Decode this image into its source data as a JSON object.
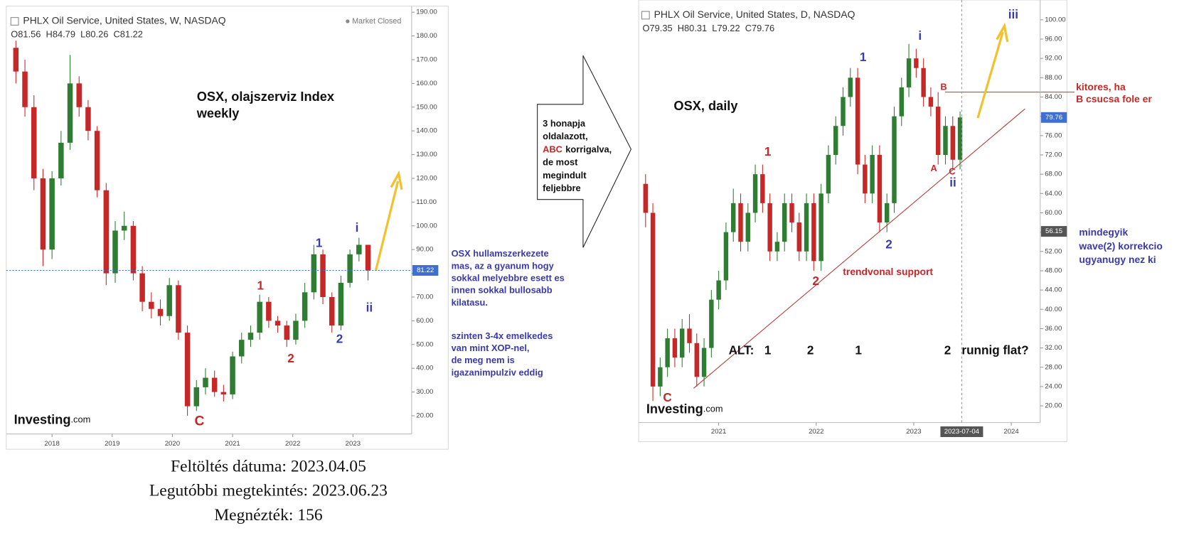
{
  "chart_data": [
    {
      "type": "candlestick",
      "title": "PHLX Oil Service, United States, W, NASDAQ",
      "ohlc_text": "O81.56  H84.79  L80.26  C81.22",
      "status": "Market Closed",
      "logo": [
        "Investing",
        ".com"
      ],
      "up_color": "#2e7d32",
      "down_color": "#c62828",
      "x": [
        2017.4,
        2017.55,
        2017.7,
        2017.85,
        2018.0,
        2018.15,
        2018.3,
        2018.45,
        2018.6,
        2018.75,
        2018.9,
        2019.05,
        2019.2,
        2019.35,
        2019.5,
        2019.65,
        2019.8,
        2019.95,
        2020.1,
        2020.25,
        2020.4,
        2020.55,
        2020.7,
        2020.85,
        2021.0,
        2021.15,
        2021.3,
        2021.45,
        2021.6,
        2021.75,
        2021.9,
        2022.05,
        2022.2,
        2022.35,
        2022.5,
        2022.65,
        2022.8,
        2022.95,
        2023.1,
        2023.25
      ],
      "open": [
        175,
        165,
        150,
        120,
        90,
        120,
        135,
        160,
        150,
        140,
        115,
        80,
        98,
        100,
        80,
        68,
        65,
        62,
        75,
        55,
        24,
        32,
        36,
        30,
        29,
        45,
        52,
        55,
        68,
        60,
        58,
        52,
        60,
        72,
        88,
        70,
        58,
        76,
        88,
        92
      ],
      "high": [
        178,
        170,
        155,
        124,
        123,
        140,
        172,
        163,
        153,
        142,
        118,
        102,
        106,
        102,
        83,
        72,
        69,
        78,
        77,
        58,
        35,
        40,
        39,
        33,
        47,
        55,
        58,
        71,
        70,
        62,
        60,
        63,
        76,
        92,
        90,
        72,
        79,
        90,
        95,
        92
      ],
      "low": [
        160,
        146,
        115,
        83,
        86,
        117,
        132,
        146,
        136,
        112,
        75,
        76,
        94,
        77,
        64,
        61,
        58,
        60,
        52,
        20,
        22,
        29,
        28,
        26,
        27,
        42,
        49,
        52,
        57,
        55,
        49,
        50,
        57,
        69,
        67,
        55,
        56,
        74,
        85,
        77
      ],
      "close": [
        165,
        150,
        120,
        90,
        120,
        135,
        160,
        150,
        140,
        115,
        80,
        98,
        100,
        80,
        68,
        65,
        62,
        75,
        55,
        24,
        32,
        36,
        30,
        29,
        45,
        52,
        55,
        68,
        60,
        58,
        52,
        60,
        72,
        88,
        70,
        58,
        76,
        88,
        92,
        81.22
      ],
      "xlim": [
        2017.24,
        2023.97
      ],
      "ylim": [
        20,
        190
      ],
      "xticks": [
        2018,
        2019,
        2020,
        2021,
        2022,
        2023
      ],
      "yticks": [
        {
          "value": 20,
          "label": "20.00"
        },
        {
          "value": 30,
          "label": "30.00"
        },
        {
          "value": 40,
          "label": "40.00"
        },
        {
          "value": 50,
          "label": "50.00"
        },
        {
          "value": 60,
          "label": "60.00"
        },
        {
          "value": 70,
          "label": "70.00"
        },
        {
          "value": 80,
          "label": "80.00"
        },
        {
          "value": 90,
          "label": "90.00"
        },
        {
          "value": 100,
          "label": "100.00"
        },
        {
          "value": 110,
          "label": "110.00"
        },
        {
          "value": 120,
          "label": "120.00"
        },
        {
          "value": 130,
          "label": "130.00"
        },
        {
          "value": 140,
          "label": "140.00"
        },
        {
          "value": 150,
          "label": "150.00"
        },
        {
          "value": 160,
          "label": "160.00"
        },
        {
          "value": 170,
          "label": "170.00"
        },
        {
          "value": 180,
          "label": "180.00"
        },
        {
          "value": 190,
          "label": "190.00"
        }
      ],
      "price_marks": [
        {
          "value": 81.22,
          "color": "#3f6fd1",
          "line": true
        }
      ],
      "annotations": [
        {
          "text": "OSX, olajszerviz Index",
          "color": "#111111"
        },
        {
          "text": "weekly",
          "color": "#111111"
        },
        {
          "text": "1",
          "color": "#c62828"
        },
        {
          "text": "2",
          "color": "#c62828"
        },
        {
          "text": "1",
          "color": "#3a3aa8"
        },
        {
          "text": "2",
          "color": "#3a3aa8"
        },
        {
          "text": "i",
          "color": "#3a3aa8"
        },
        {
          "text": "ii",
          "color": "#3a3aa8"
        },
        {
          "text": "C",
          "color": "#c62828"
        }
      ]
    },
    {
      "type": "candlestick",
      "title": "PHLX Oil Service, United States, D, NASDAQ",
      "ohlc_text": "O79.35  H80.31  L79.22  C79.76",
      "logo": [
        "Investing",
        ".com"
      ],
      "up_color": "#2e7d32",
      "down_color": "#c62828",
      "x": [
        2020.25,
        2020.325,
        2020.4,
        2020.475,
        2020.55,
        2020.625,
        2020.7,
        2020.775,
        2020.85,
        2020.925,
        2021.0,
        2021.075,
        2021.15,
        2021.225,
        2021.3,
        2021.375,
        2021.45,
        2021.525,
        2021.6,
        2021.675,
        2021.75,
        2021.825,
        2021.9,
        2021.975,
        2022.05,
        2022.125,
        2022.2,
        2022.275,
        2022.35,
        2022.425,
        2022.5,
        2022.575,
        2022.65,
        2022.725,
        2022.8,
        2022.875,
        2022.95,
        2023.025,
        2023.1,
        2023.175,
        2023.25,
        2023.325,
        2023.4,
        2023.475
      ],
      "open": [
        66,
        60,
        24,
        28,
        34,
        30,
        36,
        33,
        26,
        32,
        42,
        46,
        56,
        62,
        54,
        60,
        68,
        62,
        52,
        54,
        62,
        58,
        52,
        62,
        50,
        64,
        72,
        78,
        84,
        88,
        70,
        64,
        72,
        58,
        62,
        80,
        86,
        92,
        90,
        84,
        82,
        72,
        78,
        71
      ],
      "high": [
        68,
        62,
        30,
        36,
        36,
        38,
        39,
        35,
        34,
        44,
        48,
        58,
        65,
        64,
        62,
        70,
        70,
        64,
        56,
        64,
        64,
        60,
        64,
        64,
        66,
        74,
        80,
        86,
        90,
        90,
        72,
        74,
        74,
        64,
        82,
        88,
        95,
        94,
        92,
        86,
        85,
        80,
        80,
        81
      ],
      "low": [
        57,
        21,
        22,
        26,
        28,
        28,
        31,
        24,
        24,
        30,
        40,
        44,
        54,
        52,
        52,
        58,
        60,
        50,
        50,
        52,
        56,
        50,
        50,
        48,
        48,
        62,
        70,
        76,
        82,
        68,
        62,
        62,
        56,
        56,
        60,
        78,
        84,
        88,
        82,
        80,
        70,
        70,
        69,
        69
      ],
      "close": [
        60,
        24,
        28,
        34,
        30,
        36,
        33,
        26,
        32,
        42,
        46,
        56,
        62,
        54,
        60,
        68,
        62,
        52,
        54,
        62,
        58,
        52,
        62,
        50,
        64,
        72,
        78,
        84,
        88,
        70,
        64,
        72,
        58,
        62,
        80,
        86,
        92,
        90,
        84,
        82,
        72,
        78,
        71,
        79.76
      ],
      "xlim": [
        2020.18,
        2024.3
      ],
      "ylim": [
        20,
        100
      ],
      "xticks": [
        2021,
        2022,
        2023,
        2024
      ],
      "yticks": [
        {
          "value": 20,
          "label": "20.00"
        },
        {
          "value": 24,
          "label": "24.00"
        },
        {
          "value": 28,
          "label": "28.00"
        },
        {
          "value": 32,
          "label": "32.00"
        },
        {
          "value": 36,
          "label": "36.00"
        },
        {
          "value": 40,
          "label": "40.00"
        },
        {
          "value": 44,
          "label": "44.00"
        },
        {
          "value": 48,
          "label": "48.00"
        },
        {
          "value": 52,
          "label": "52.00"
        },
        {
          "value": 56,
          "label": "56.00"
        },
        {
          "value": 60,
          "label": "60.00"
        },
        {
          "value": 64,
          "label": "64.00"
        },
        {
          "value": 68,
          "label": "68.00"
        },
        {
          "value": 72,
          "label": "72.00"
        },
        {
          "value": 76,
          "label": "76.00"
        },
        {
          "value": 80,
          "label": "80.00"
        },
        {
          "value": 84,
          "label": "84.00"
        },
        {
          "value": 88,
          "label": "88.00"
        },
        {
          "value": 92,
          "label": "92.00"
        },
        {
          "value": 96,
          "label": "96.00"
        },
        {
          "value": 100,
          "label": "100.00"
        }
      ],
      "price_marks": [
        {
          "value": 79.76,
          "color": "#3f6fd1",
          "line": false
        },
        {
          "value": 56.15,
          "color": "#555555",
          "line": false
        }
      ],
      "crosshair_label": "2023-07-04",
      "annotations": [
        {
          "text": "OSX, daily",
          "color": "#111111"
        },
        {
          "text": "1",
          "color": "#c62828"
        },
        {
          "text": "2",
          "color": "#c62828"
        },
        {
          "text": "1",
          "color": "#3a3aa8"
        },
        {
          "text": "2",
          "color": "#3a3aa8"
        },
        {
          "text": "i",
          "color": "#3a3aa8"
        },
        {
          "text": "ii",
          "color": "#3a3aa8"
        },
        {
          "text": "iii",
          "color": "#3a3aa8"
        },
        {
          "text": "A",
          "color": "#c62828"
        },
        {
          "text": "B",
          "color": "#c62828"
        },
        {
          "text": "C",
          "color": "#c62828"
        },
        {
          "text": "C",
          "color": "#c62828"
        },
        {
          "text": "trendvonal support",
          "color": "#c62828"
        },
        {
          "text": "ALT:",
          "color": "#111111"
        },
        {
          "text": "1",
          "color": "#111111"
        },
        {
          "text": "2",
          "color": "#111111"
        },
        {
          "text": "1",
          "color": "#111111"
        },
        {
          "text": "2",
          "color": "#111111"
        },
        {
          "text": "runnig flat?",
          "color": "#111111"
        },
        {
          "text": "kitores, ha",
          "color": "#c62828"
        },
        {
          "text": "B csucsa fole er",
          "color": "#c62828"
        },
        {
          "text": "mindegyik",
          "color": "#3a3aa8"
        },
        {
          "text": "wave(2) korrekcio",
          "color": "#3a3aa8"
        },
        {
          "text": "ugyanugy nez ki",
          "color": "#3a3aa8"
        }
      ]
    }
  ],
  "notes": [
    {
      "text": "3 honapja",
      "color": "#111111"
    },
    {
      "text": "oldalazott,",
      "color": "#111111"
    },
    {
      "text": "ABC",
      "color": "#c62828"
    },
    {
      "text": "korrigalva,",
      "color": "#111111"
    },
    {
      "text": "de most",
      "color": "#111111"
    },
    {
      "text": "megindult",
      "color": "#111111"
    },
    {
      "text": "feljebbre",
      "color": "#111111"
    },
    {
      "text": "OSX hullamszerkezete",
      "color": "#3a3aa8"
    },
    {
      "text": "mas, az a gyanum hogy",
      "color": "#3a3aa8"
    },
    {
      "text": "sokkal melyebbre esett es",
      "color": "#3a3aa8"
    },
    {
      "text": "innen sokkal bullosabb",
      "color": "#3a3aa8"
    },
    {
      "text": "kilatasu.",
      "color": "#3a3aa8"
    },
    {
      "text": "szinten 3-4x emelkedes",
      "color": "#3a3aa8"
    },
    {
      "text": "van mint XOP-nel,",
      "color": "#3a3aa8"
    },
    {
      "text": "de meg nem is",
      "color": "#3a3aa8"
    },
    {
      "text": "igazanimpulziv eddig",
      "color": "#3a3aa8"
    }
  ],
  "footer": [
    "Feltöltés dátuma: 2023.04.05",
    "Legutóbbi megtekintés: 2023.06.23",
    "Megnézték: 156"
  ]
}
